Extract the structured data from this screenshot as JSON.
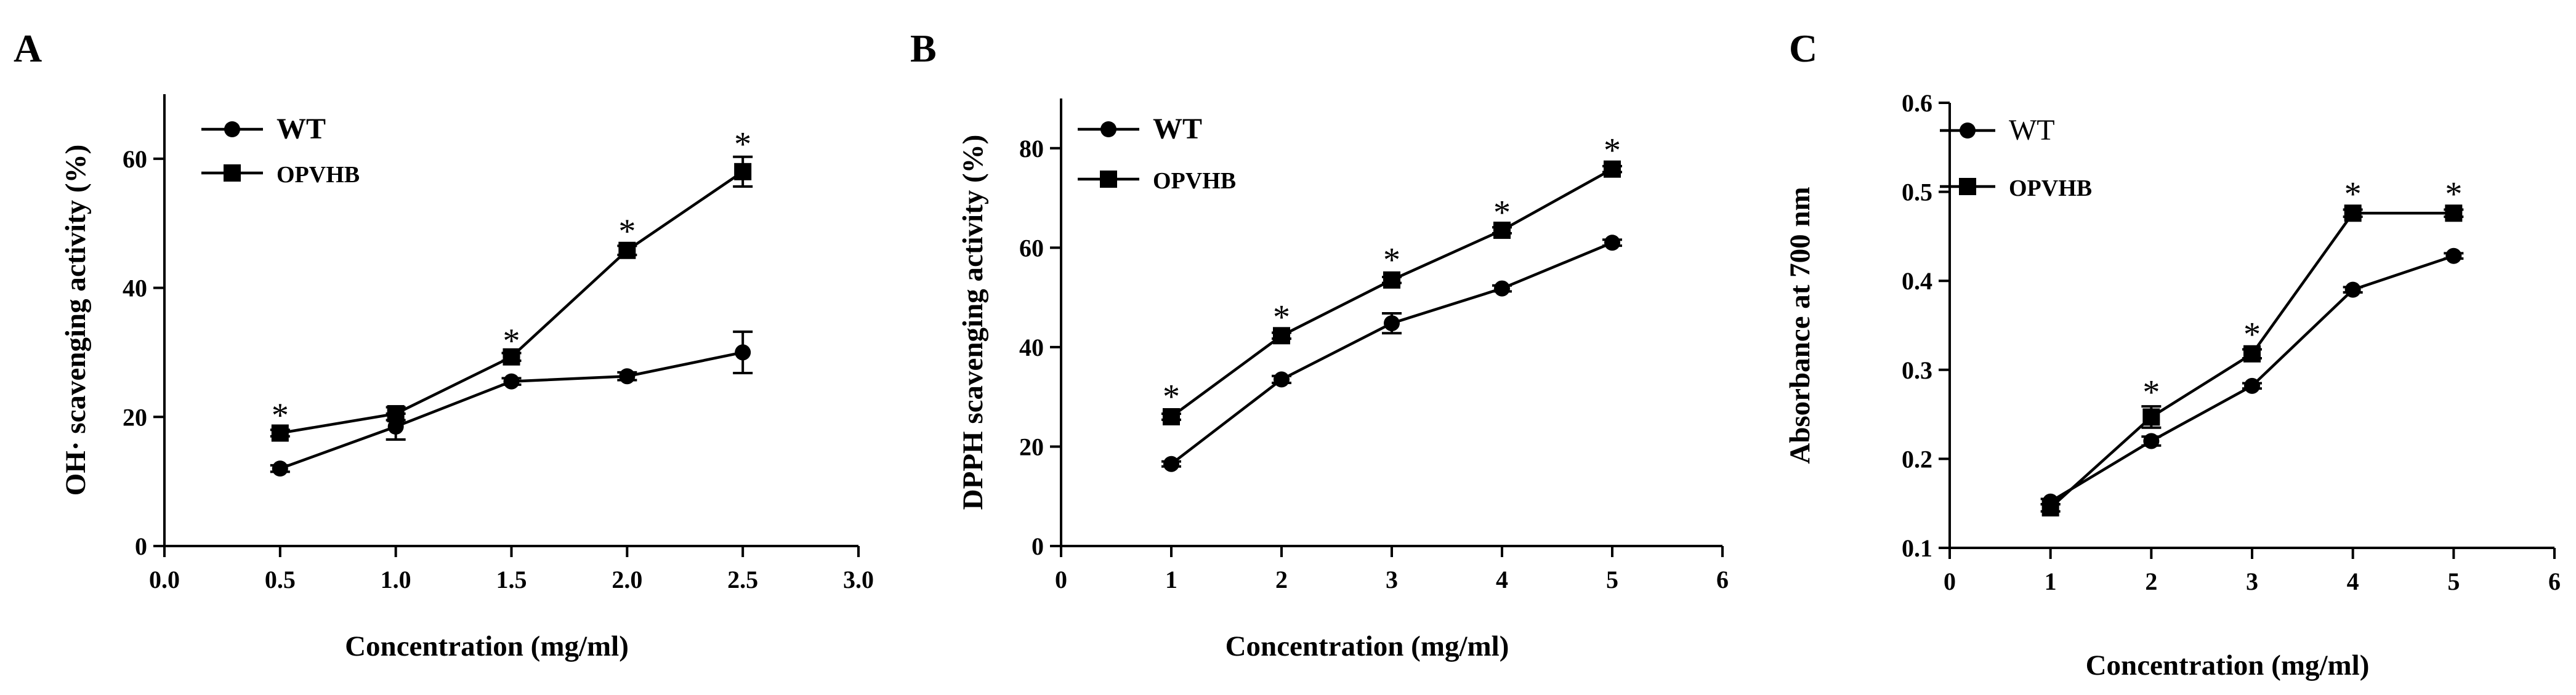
{
  "chart_data": [
    {
      "type": "line",
      "panel": "A",
      "xlabel": "Concentration (mg/ml)",
      "ylabel": "OH· scavenging activity (%)",
      "xlim": [
        0,
        3.0
      ],
      "ylim": [
        0,
        70
      ],
      "xticks": [
        "0.0",
        "0.5",
        "1.0",
        "1.5",
        "2.0",
        "2.5",
        "3.0"
      ],
      "yticks": [
        "0",
        "20",
        "40",
        "60"
      ],
      "legend_position": "top-left",
      "series": [
        {
          "name": "WT",
          "marker": "circle",
          "x": [
            0.5,
            1.0,
            1.5,
            2.0,
            2.5
          ],
          "values": [
            12.0,
            18.5,
            25.5,
            26.3,
            30.0
          ],
          "errors": [
            0.5,
            2.0,
            0.5,
            0.6,
            3.2
          ]
        },
        {
          "name": "OPVHB",
          "marker": "square",
          "x": [
            0.5,
            1.0,
            1.5,
            2.0,
            2.5
          ],
          "values": [
            17.5,
            20.5,
            29.3,
            45.8,
            58.0
          ],
          "errors": [
            0.5,
            1.0,
            0.6,
            0.7,
            2.3
          ]
        }
      ],
      "annotations": [
        {
          "text": "*",
          "x": 0.5,
          "y": 21.0
        },
        {
          "text": "*",
          "x": 1.5,
          "y": 32.5
        },
        {
          "text": "*",
          "x": 2.0,
          "y": 49.5
        },
        {
          "text": "*",
          "x": 2.5,
          "y": 63.0
        }
      ]
    },
    {
      "type": "line",
      "panel": "B",
      "xlabel": "Concentration (mg/ml)",
      "ylabel": "DPPH scavenging activity (%)",
      "xlim": [
        0,
        6
      ],
      "ylim": [
        0,
        90
      ],
      "xticks": [
        "0",
        "1",
        "2",
        "3",
        "4",
        "5",
        "6"
      ],
      "yticks": [
        "0",
        "20",
        "40",
        "60",
        "80"
      ],
      "legend_position": "top-left",
      "series": [
        {
          "name": "WT",
          "marker": "circle",
          "x": [
            1,
            2,
            3,
            4,
            5
          ],
          "values": [
            16.5,
            33.5,
            44.8,
            51.8,
            61.0
          ],
          "errors": [
            0.5,
            0.7,
            2.0,
            0.6,
            0.6
          ]
        },
        {
          "name": "OPVHB",
          "marker": "square",
          "x": [
            1,
            2,
            3,
            4,
            5
          ],
          "values": [
            26.0,
            42.3,
            53.5,
            63.5,
            75.8
          ],
          "errors": [
            0.6,
            0.6,
            0.6,
            0.6,
            0.6
          ]
        }
      ],
      "annotations": [
        {
          "text": "*",
          "x": 1,
          "y": 31.0
        },
        {
          "text": "*",
          "x": 2,
          "y": 47.0
        },
        {
          "text": "*",
          "x": 3,
          "y": 58.5
        },
        {
          "text": "*",
          "x": 4,
          "y": 68.0
        },
        {
          "text": "*",
          "x": 5,
          "y": 80.5
        }
      ]
    },
    {
      "type": "line",
      "panel": "C",
      "xlabel": "Concentration (mg/ml)",
      "ylabel": "Absorbance at 700 nm",
      "xlim": [
        0,
        6
      ],
      "ylim": [
        0.1,
        0.6
      ],
      "xticks": [
        "0",
        "1",
        "2",
        "3",
        "4",
        "5",
        "6"
      ],
      "yticks": [
        "0.1",
        "0.2",
        "0.3",
        "0.4",
        "0.5",
        "0.6"
      ],
      "legend_position": "top-left",
      "series": [
        {
          "name": "WT",
          "marker": "circle",
          "x": [
            1,
            2,
            3,
            4,
            5
          ],
          "values": [
            0.152,
            0.22,
            0.282,
            0.39,
            0.428
          ],
          "errors": [
            0.003,
            0.005,
            0.003,
            0.003,
            0.003
          ]
        },
        {
          "name": "OPVHB",
          "marker": "square",
          "x": [
            1,
            2,
            3,
            4,
            5
          ],
          "values": [
            0.145,
            0.247,
            0.318,
            0.476,
            0.476
          ],
          "errors": [
            0.004,
            0.012,
            0.005,
            0.004,
            0.004
          ]
        }
      ],
      "annotations": [
        {
          "text": "*",
          "x": 2,
          "y": 0.28
        },
        {
          "text": "*",
          "x": 3,
          "y": 0.345
        },
        {
          "text": "*",
          "x": 4,
          "y": 0.503
        },
        {
          "text": "*",
          "x": 5,
          "y": 0.503
        }
      ]
    }
  ]
}
